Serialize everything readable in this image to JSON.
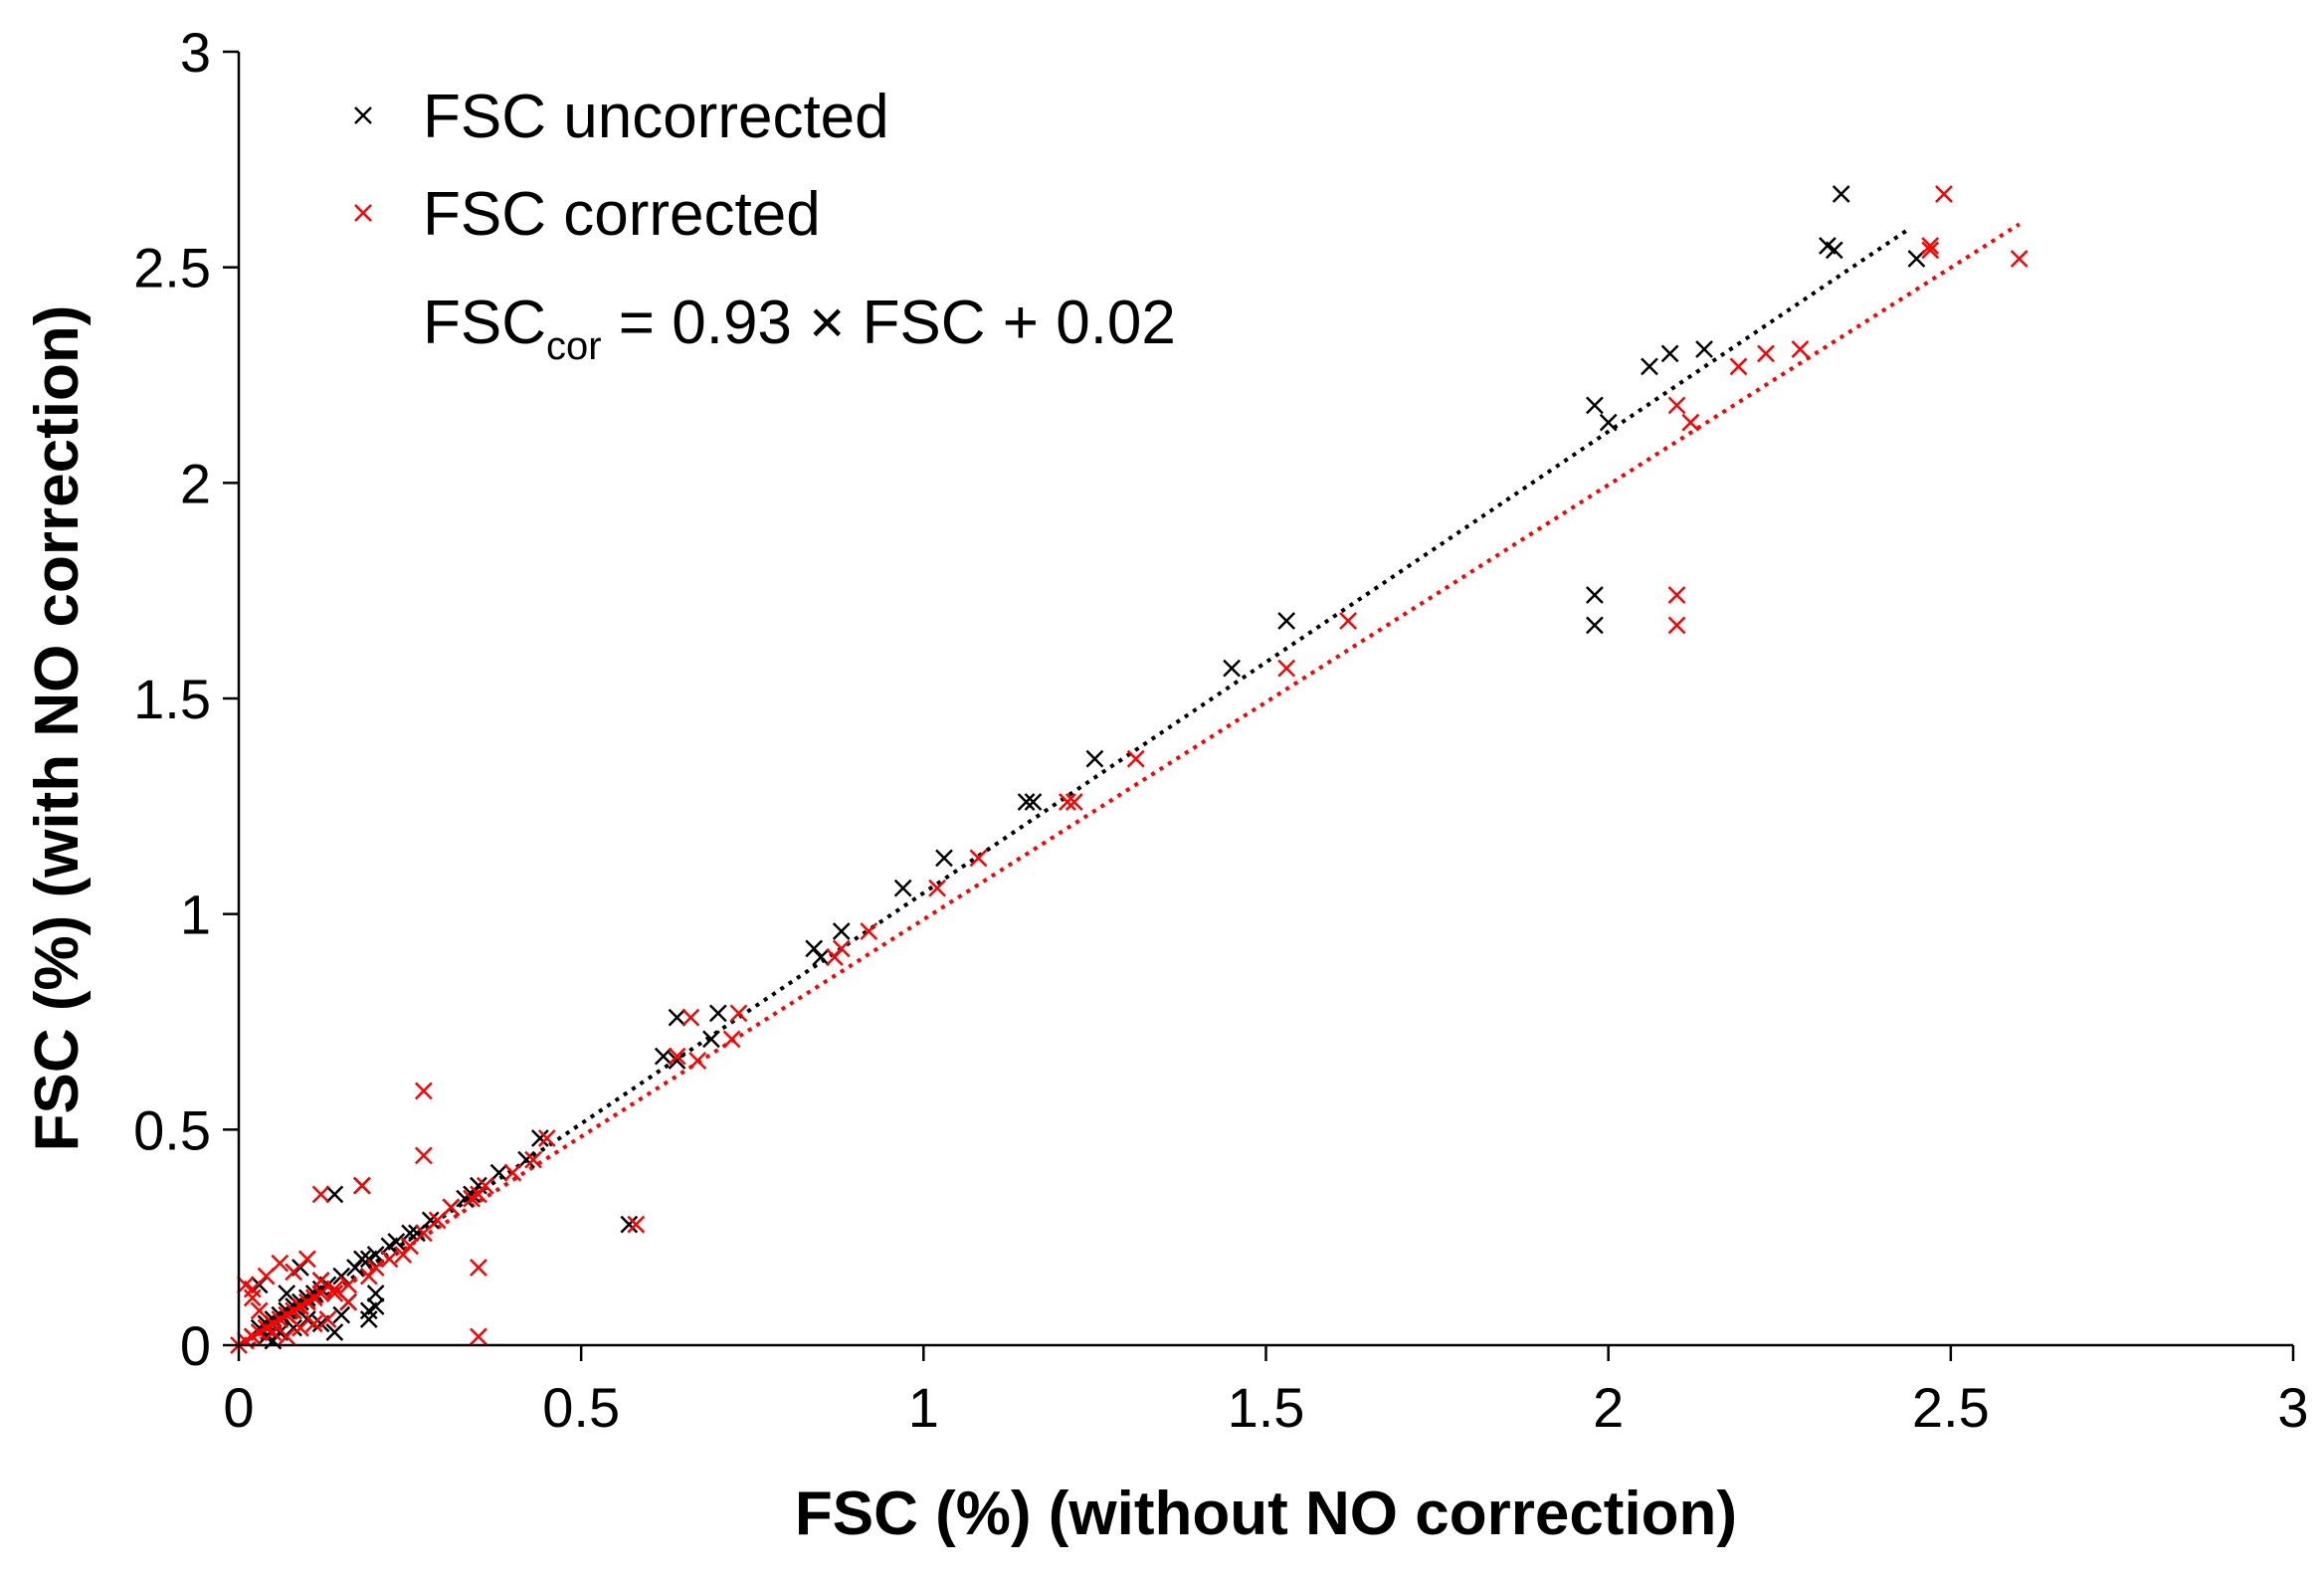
{
  "chart_data": {
    "type": "scatter",
    "title": "",
    "xlabel": "FSC (%) (without NO correction)",
    "ylabel": "FSC (%) (with NO correction)",
    "xlim": [
      0,
      3
    ],
    "ylim": [
      0,
      3
    ],
    "xticks": [
      "0",
      "0.5",
      "1",
      "1.5",
      "2",
      "2.5",
      "3"
    ],
    "yticks": [
      "0",
      "0.5",
      "1",
      "1.5",
      "2",
      "2.5",
      "3"
    ],
    "grid": false,
    "legend_position": "top-left",
    "annotation": {
      "main": "FSC",
      "sub": "cor",
      "rest": " = 0.93 × FSC + 0.02"
    },
    "series": [
      {
        "name": "FSC uncorrected",
        "color": "#000000",
        "marker": "×",
        "trendline": {
          "x": [
            0.02,
            2.44
          ],
          "y": [
            0.0,
            2.59
          ],
          "style": "dotted"
        },
        "x": [
          2.34,
          2.32,
          2.33,
          2.45,
          2.14,
          2.09,
          2.06,
          1.98,
          2.0,
          1.98,
          1.98,
          1.53,
          1.45,
          1.25,
          1.15,
          1.16,
          1.03,
          0.97,
          0.88,
          0.84,
          0.85,
          0.7,
          0.69,
          0.64,
          0.64,
          0.62,
          0.57,
          0.44,
          0.42,
          0.38,
          0.35,
          0.34,
          0.33,
          0.31,
          0.28,
          0.26,
          0.25,
          0.23,
          0.22,
          0.2,
          0.19,
          0.18,
          0.17,
          0.15,
          0.14,
          0.13,
          0.12,
          0.11,
          0.1,
          0.09,
          0.08,
          0.07,
          0.06,
          0.05,
          0.04,
          0.03,
          0.02,
          0.18,
          0.19,
          0.2,
          0.15,
          0.14,
          0.12,
          0.1,
          0.08,
          0.06,
          0.05,
          0.04,
          0.03,
          0.2,
          0.19,
          0.16,
          0.12,
          0.09,
          0.07
        ],
        "y": [
          2.67,
          2.55,
          2.54,
          2.52,
          2.31,
          2.3,
          2.27,
          2.18,
          2.14,
          1.74,
          1.67,
          1.68,
          1.57,
          1.36,
          1.26,
          1.26,
          1.13,
          1.06,
          0.96,
          0.92,
          0.9,
          0.77,
          0.71,
          0.76,
          0.66,
          0.67,
          0.28,
          0.48,
          0.43,
          0.4,
          0.37,
          0.35,
          0.34,
          0.32,
          0.29,
          0.26,
          0.26,
          0.24,
          0.23,
          0.21,
          0.2,
          0.2,
          0.18,
          0.16,
          0.35,
          0.14,
          0.13,
          0.12,
          0.11,
          0.1,
          0.09,
          0.08,
          0.07,
          0.06,
          0.05,
          0.04,
          0.02,
          0.37,
          0.06,
          0.09,
          0.07,
          0.03,
          0.05,
          0.06,
          0.04,
          0.03,
          0.01,
          0.02,
          0.14,
          0.12,
          0.08,
          0.1,
          0.15,
          0.18,
          0.12
        ]
      },
      {
        "name": "FSC corrected",
        "color": "#ff0000",
        "marker": "×",
        "trendline": {
          "x": [
            0.02,
            2.6
          ],
          "y": [
            0.0,
            2.6
          ],
          "style": "dotted"
        },
        "x": [
          2.49,
          2.6,
          2.47,
          2.47,
          2.28,
          2.23,
          2.19,
          2.1,
          2.12,
          2.1,
          2.1,
          1.62,
          1.53,
          1.31,
          1.21,
          1.22,
          1.08,
          1.02,
          0.92,
          0.88,
          0.87,
          0.73,
          0.72,
          0.66,
          0.67,
          0.64,
          0.58,
          0.45,
          0.43,
          0.4,
          0.36,
          0.35,
          0.34,
          0.31,
          0.29,
          0.27,
          0.27,
          0.27,
          0.35,
          0.35,
          0.25,
          0.24,
          0.22,
          0.2,
          0.18,
          0.12,
          0.19,
          0.16,
          0.14,
          0.12,
          0.11,
          0.1,
          0.09,
          0.08,
          0.07,
          0.06,
          0.05,
          0.04,
          0.03,
          0.02,
          0.01,
          0.0,
          0.01,
          0.02,
          0.04,
          0.06,
          0.08,
          0.1,
          0.12,
          0.14,
          0.16,
          0.05,
          0.07,
          0.09,
          0.11,
          0.13,
          0.03,
          0.02
        ],
        "y": [
          2.67,
          2.52,
          2.55,
          2.54,
          2.31,
          2.3,
          2.27,
          2.18,
          2.14,
          1.74,
          1.67,
          1.68,
          1.57,
          1.36,
          1.26,
          1.26,
          1.13,
          1.06,
          0.96,
          0.92,
          0.9,
          0.77,
          0.71,
          0.76,
          0.66,
          0.67,
          0.28,
          0.48,
          0.43,
          0.4,
          0.37,
          0.35,
          0.34,
          0.32,
          0.29,
          0.59,
          0.44,
          0.26,
          0.18,
          0.02,
          0.23,
          0.21,
          0.2,
          0.18,
          0.37,
          0.35,
          0.16,
          0.14,
          0.13,
          0.12,
          0.11,
          0.1,
          0.09,
          0.08,
          0.07,
          0.06,
          0.05,
          0.04,
          0.03,
          0.02,
          0.01,
          0.0,
          0.14,
          0.11,
          0.16,
          0.19,
          0.17,
          0.2,
          0.15,
          0.12,
          0.1,
          0.03,
          0.02,
          0.04,
          0.05,
          0.06,
          0.08,
          0.13
        ]
      }
    ]
  }
}
